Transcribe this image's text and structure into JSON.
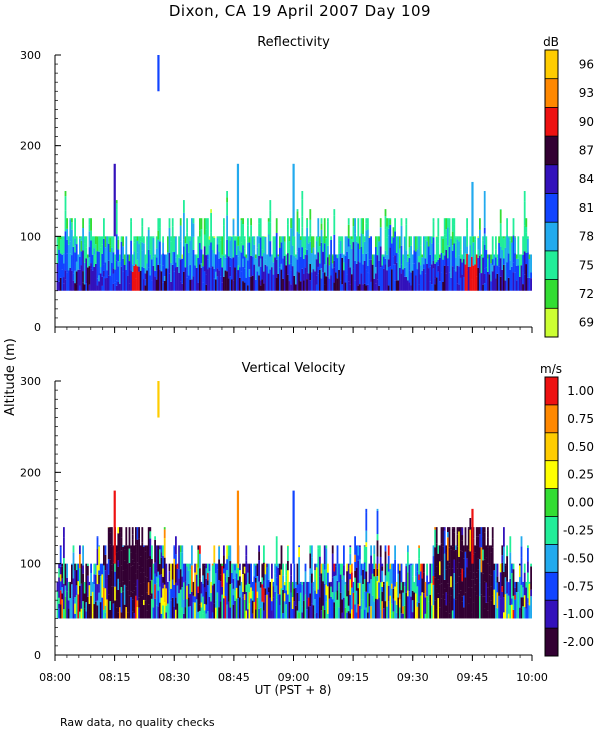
{
  "title": "Dixon, CA 19 April 2007  Day 109",
  "footnote": "Raw data, no quality checks",
  "y_axis_label": "Altitude (m)",
  "x_axis_label": "UT  (PST + 8)",
  "colors": {
    "reflectivity_scale": [
      "#ccff33",
      "#33dd33",
      "#22ee99",
      "#22aaee",
      "#1144ff",
      "#3311bb",
      "#330033",
      "#ee1111",
      "#ff8800",
      "#ffcc00"
    ],
    "velocity_scale": [
      "#330033",
      "#3311bb",
      "#1144ff",
      "#22aaee",
      "#22ee99",
      "#33dd33",
      "#ffff00",
      "#ffcc00",
      "#ff8800",
      "#ee1111"
    ]
  },
  "chart_data": [
    {
      "type": "heatmap",
      "title": "Reflectivity",
      "colorbar_unit": "dB",
      "colorbar_ticks": [
        "69",
        "72",
        "75",
        "78",
        "81",
        "84",
        "87",
        "90",
        "93",
        "96"
      ],
      "ylim": [
        0,
        300
      ],
      "yticks": [
        "0",
        "100",
        "200",
        "300"
      ],
      "xlim_minutes_after_0800": [
        0,
        120
      ],
      "xticks": [
        "08:00",
        "08:15",
        "08:30",
        "08:45",
        "09:00",
        "09:15",
        "09:30",
        "09:45",
        "10:00"
      ],
      "data_floor_m": 40,
      "typical_top_m": 100,
      "spikes": [
        {
          "t_min": 15,
          "top_m": 180,
          "level": 5
        },
        {
          "t_min": 26,
          "bottom_m": 260,
          "top_m": 300,
          "level": 4
        },
        {
          "t_min": 46,
          "top_m": 180,
          "level": 3
        },
        {
          "t_min": 60,
          "top_m": 180,
          "level": 3
        },
        {
          "t_min": 105,
          "top_m": 160,
          "level": 3
        }
      ],
      "hotspots_dB": [
        {
          "t_start_min": 19,
          "t_end_min": 21,
          "value": 90
        },
        {
          "t_start_min": 103,
          "t_end_min": 106,
          "value": 90
        }
      ]
    },
    {
      "type": "heatmap",
      "title": "Vertical Velocity",
      "colorbar_unit": "m/s",
      "colorbar_ticks": [
        "-2.00",
        "-1.00",
        "-0.75",
        "-0.50",
        "-0.25",
        "0.00",
        "0.25",
        "0.50",
        "0.75",
        "1.00"
      ],
      "ylim": [
        0,
        300
      ],
      "yticks": [
        "0",
        "100",
        "200",
        "300"
      ],
      "xlim_minutes_after_0800": [
        0,
        120
      ],
      "xticks": [
        "08:00",
        "08:15",
        "08:30",
        "08:45",
        "09:00",
        "09:15",
        "09:30",
        "09:45",
        "10:00"
      ],
      "data_floor_m": 40,
      "typical_top_m": 100,
      "spikes": [
        {
          "t_min": 15,
          "top_m": 180,
          "level": 9
        },
        {
          "t_min": 26,
          "bottom_m": 260,
          "top_m": 300,
          "level": 7
        },
        {
          "t_min": 46,
          "top_m": 180,
          "level": 8
        },
        {
          "t_min": 60,
          "top_m": 180,
          "level": 2
        },
        {
          "t_min": 105,
          "top_m": 160,
          "level": 9
        }
      ],
      "downdraft_blocks": [
        {
          "t_start_min": 13,
          "t_end_min": 24,
          "top_m": 140
        },
        {
          "t_start_min": 95,
          "t_end_min": 110,
          "top_m": 140
        }
      ]
    }
  ]
}
